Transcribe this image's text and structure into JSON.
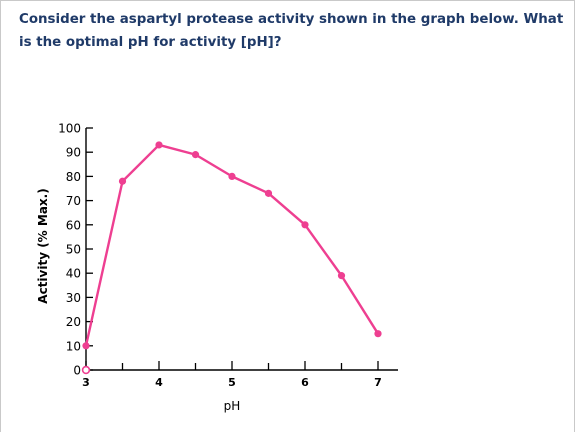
{
  "question": {
    "text": "Consider the aspartyl protease activity shown in the graph below. What is the optimal pH for activity [pH]?"
  },
  "chart_data": {
    "type": "line",
    "xlabel": "pH",
    "ylabel": "Activity (% Max.)",
    "xlim": [
      3,
      7
    ],
    "ylim": [
      0,
      100
    ],
    "x_ticks": [
      3,
      4,
      5,
      6,
      7
    ],
    "y_ticks": [
      0,
      10,
      20,
      30,
      40,
      50,
      60,
      70,
      80,
      90,
      100
    ],
    "grid": false,
    "series": [
      {
        "color": "#ee3f91",
        "points": [
          {
            "x": 3.0,
            "y": 10
          },
          {
            "x": 3.5,
            "y": 78
          },
          {
            "x": 4.0,
            "y": 93
          },
          {
            "x": 4.5,
            "y": 89
          },
          {
            "x": 5.0,
            "y": 80
          },
          {
            "x": 5.5,
            "y": 73
          },
          {
            "x": 6.0,
            "y": 60
          },
          {
            "x": 6.5,
            "y": 39
          },
          {
            "x": 7.0,
            "y": 15
          }
        ]
      }
    ]
  }
}
